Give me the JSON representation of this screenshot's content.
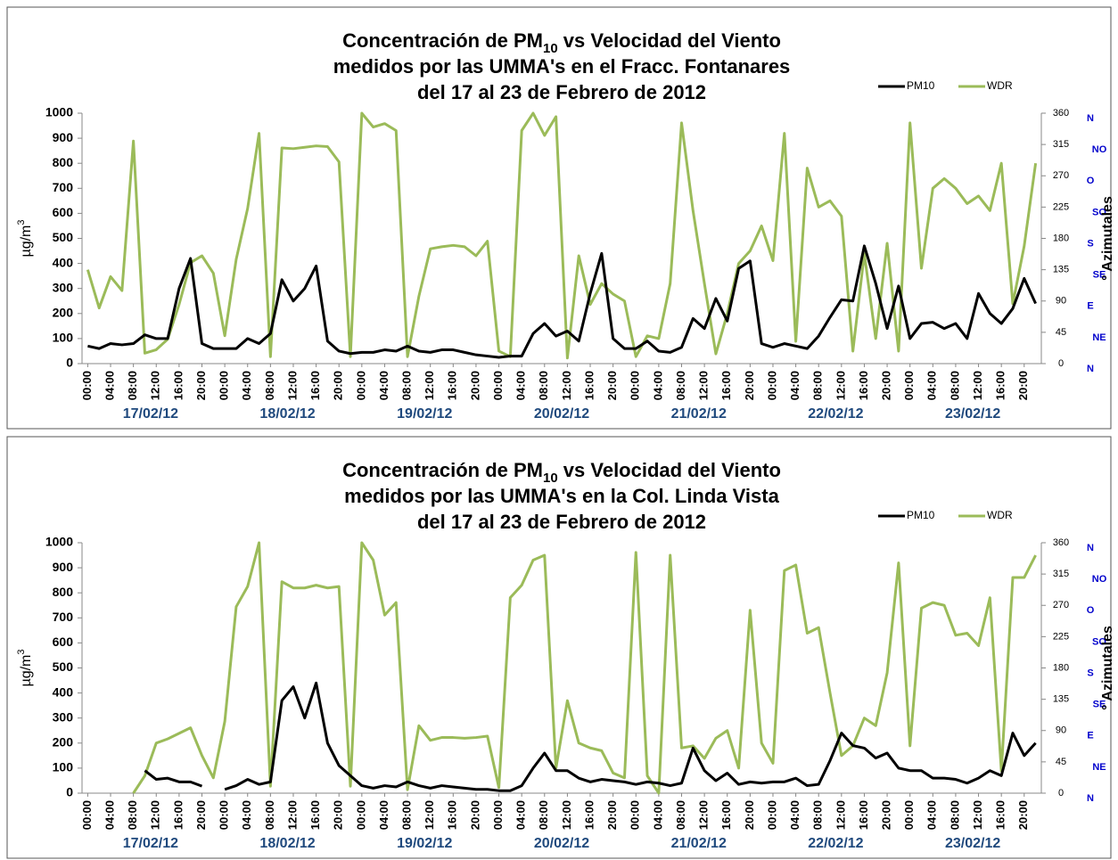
{
  "chart_data": [
    {
      "type": "line",
      "title": [
        [
          "Concentración de PM",
          "10",
          " vs Velocidad del Viento"
        ],
        [
          "medidos por las UMMA's en el Fracc. Fontanares"
        ],
        [
          "del 17 al 23 de Febrero de 2012"
        ]
      ],
      "ylabel": [
        "µg/m",
        "3"
      ],
      "y2label": "° Azimutales",
      "categories": [
        "00:00",
        null,
        "04:00",
        null,
        "08:00",
        null,
        "12:00",
        null,
        "16:00",
        null,
        "20:00",
        null,
        "00:00",
        null,
        "04:00",
        null,
        "08:00",
        null,
        "12:00",
        null,
        "16:00",
        null,
        "20:00",
        null,
        "00:00",
        null,
        "04:00",
        null,
        "08:00",
        null,
        "12:00",
        null,
        "16:00",
        null,
        "20:00",
        null,
        "00:00",
        null,
        "04:00",
        null,
        "08:00",
        null,
        "12:00",
        null,
        "16:00",
        null,
        "20:00",
        null,
        "00:00",
        null,
        "04:00",
        null,
        "08:00",
        null,
        "12:00",
        null,
        "16:00",
        null,
        "20:00",
        null,
        "00:00",
        null,
        "04:00",
        null,
        "08:00",
        null,
        "12:00",
        null,
        "16:00",
        null,
        "20:00",
        null,
        "00:00",
        null,
        "04:00",
        null,
        "08:00",
        null,
        "12:00",
        null,
        "16:00",
        null,
        "20:00",
        null
      ],
      "dates": [
        "17/02/12",
        "18/02/12",
        "19/02/12",
        "20/02/12",
        "21/02/12",
        "22/02/12",
        "23/02/12"
      ],
      "ylim": [
        0,
        1000
      ],
      "yticks": [
        0,
        100,
        200,
        300,
        400,
        500,
        600,
        700,
        800,
        900,
        1000
      ],
      "y2lim": [
        0,
        360
      ],
      "y2ticks": [
        0,
        45,
        90,
        135,
        180,
        225,
        270,
        315,
        360
      ],
      "y2_direction_labels": [
        "N",
        "NE",
        "E",
        "SE",
        "S",
        "SO",
        "O",
        "NO",
        "N"
      ],
      "grid": false,
      "series": [
        {
          "name": "PM10",
          "color": "#000000",
          "values": [
            70,
            60,
            80,
            75,
            80,
            115,
            100,
            100,
            300,
            420,
            80,
            60,
            60,
            60,
            100,
            80,
            120,
            335,
            250,
            300,
            390,
            90,
            50,
            40,
            45,
            45,
            55,
            50,
            70,
            50,
            45,
            55,
            55,
            45,
            35,
            30,
            25,
            30,
            30,
            120,
            160,
            110,
            130,
            90,
            280,
            440,
            100,
            60,
            60,
            90,
            50,
            45,
            65,
            180,
            140,
            260,
            170,
            380,
            410,
            80,
            65,
            80,
            70,
            60,
            110,
            185,
            255,
            250,
            470,
            320,
            140,
            310,
            100,
            160,
            165,
            140,
            160,
            100,
            280,
            200,
            160,
            220,
            340,
            240
          ]
        },
        {
          "name": "WDR",
          "color": "#9bbb59",
          "axis": "y2",
          "values": [
            135,
            80,
            125,
            105,
            320,
            15,
            20,
            35,
            85,
            145,
            155,
            130,
            40,
            150,
            223,
            331,
            10,
            310,
            309,
            311,
            313,
            312,
            290,
            10,
            360,
            340,
            345,
            335,
            10,
            97,
            165,
            168,
            170,
            168,
            155,
            176,
            18,
            10,
            335,
            360,
            328,
            355,
            8,
            155,
            85,
            115,
            100,
            90,
            10,
            40,
            36,
            115,
            346,
            220,
            115,
            14,
            72,
            144,
            162,
            198,
            148,
            331,
            32,
            281,
            225,
            234,
            212,
            18,
            158,
            36,
            173,
            18,
            346,
            137,
            252,
            266,
            252,
            230,
            241,
            220,
            288,
            86,
            169,
            288
          ]
        }
      ]
    },
    {
      "type": "line",
      "title": [
        [
          "Concentración de PM",
          "10",
          " vs Velocidad del Viento"
        ],
        [
          "medidos por las UMMA's en la Col. Linda Vista"
        ],
        [
          "del 17 al 23 de Febrero de 2012"
        ]
      ],
      "ylabel": [
        "µg/m",
        "3"
      ],
      "y2label": "° Azimutales",
      "categories": [
        "00:00",
        null,
        "04:00",
        null,
        "08:00",
        null,
        "12:00",
        null,
        "16:00",
        null,
        "20:00",
        null,
        "00:00",
        null,
        "04:00",
        null,
        "08:00",
        null,
        "12:00",
        null,
        "16:00",
        null,
        "20:00",
        null,
        "00:00",
        null,
        "04:00",
        null,
        "08:00",
        null,
        "12:00",
        null,
        "16:00",
        null,
        "20:00",
        null,
        "00:00",
        null,
        "04:00",
        null,
        "08:00",
        null,
        "12:00",
        null,
        "16:00",
        null,
        "20:00",
        null,
        "00:00",
        null,
        "04:00",
        null,
        "08:00",
        null,
        "12:00",
        null,
        "16:00",
        null,
        "20:00",
        null,
        "00:00",
        null,
        "04:00",
        null,
        "08:00",
        null,
        "12:00",
        null,
        "16:00",
        null,
        "20:00",
        null,
        "00:00",
        null,
        "04:00",
        null,
        "08:00",
        null,
        "12:00",
        null,
        "16:00",
        null,
        "20:00",
        null
      ],
      "dates": [
        "17/02/12",
        "18/02/12",
        "19/02/12",
        "20/02/12",
        "21/02/12",
        "22/02/12",
        "23/02/12"
      ],
      "ylim": [
        0,
        1000
      ],
      "yticks": [
        0,
        100,
        200,
        300,
        400,
        500,
        600,
        700,
        800,
        900,
        1000
      ],
      "y2lim": [
        0,
        360
      ],
      "y2ticks": [
        0,
        45,
        90,
        135,
        180,
        225,
        270,
        315,
        360
      ],
      "y2_direction_labels": [
        "N",
        "NE",
        "E",
        "SE",
        "S",
        "SO",
        "O",
        "NO",
        "N"
      ],
      "grid": false,
      "series": [
        {
          "name": "PM10",
          "color": "#000000",
          "values": [
            null,
            null,
            null,
            null,
            null,
            90,
            55,
            60,
            45,
            45,
            28,
            null,
            15,
            30,
            55,
            35,
            45,
            370,
            425,
            300,
            440,
            200,
            110,
            70,
            30,
            20,
            30,
            25,
            45,
            30,
            20,
            30,
            25,
            20,
            15,
            15,
            10,
            10,
            30,
            100,
            160,
            90,
            90,
            60,
            45,
            55,
            50,
            45,
            35,
            45,
            40,
            30,
            40,
            180,
            90,
            50,
            80,
            35,
            45,
            40,
            45,
            45,
            60,
            30,
            35,
            130,
            240,
            190,
            180,
            140,
            160,
            100,
            90,
            90,
            60,
            60,
            55,
            40,
            60,
            90,
            70,
            240,
            150,
            200
          ]
        },
        {
          "name": "WDR",
          "color": "#9bbb59",
          "axis": "y2",
          "values": [
            null,
            null,
            null,
            null,
            0,
            25,
            72,
            78,
            86,
            94,
            54,
            22,
            103,
            268,
            297,
            360,
            10,
            304,
            295,
            295,
            299,
            295,
            297,
            10,
            360,
            335,
            256,
            274,
            5,
            97,
            76,
            80,
            80,
            79,
            80,
            82,
            8,
            281,
            299,
            335,
            342,
            36,
            133,
            72,
            65,
            61,
            29,
            22,
            346,
            25,
            0,
            342,
            65,
            68,
            50,
            79,
            90,
            36,
            263,
            72,
            43,
            320,
            328,
            230,
            238,
            144,
            54,
            68,
            108,
            97,
            173,
            331,
            68,
            266,
            274,
            270,
            227,
            230,
            212,
            281,
            32,
            310,
            310,
            342
          ]
        }
      ]
    }
  ]
}
